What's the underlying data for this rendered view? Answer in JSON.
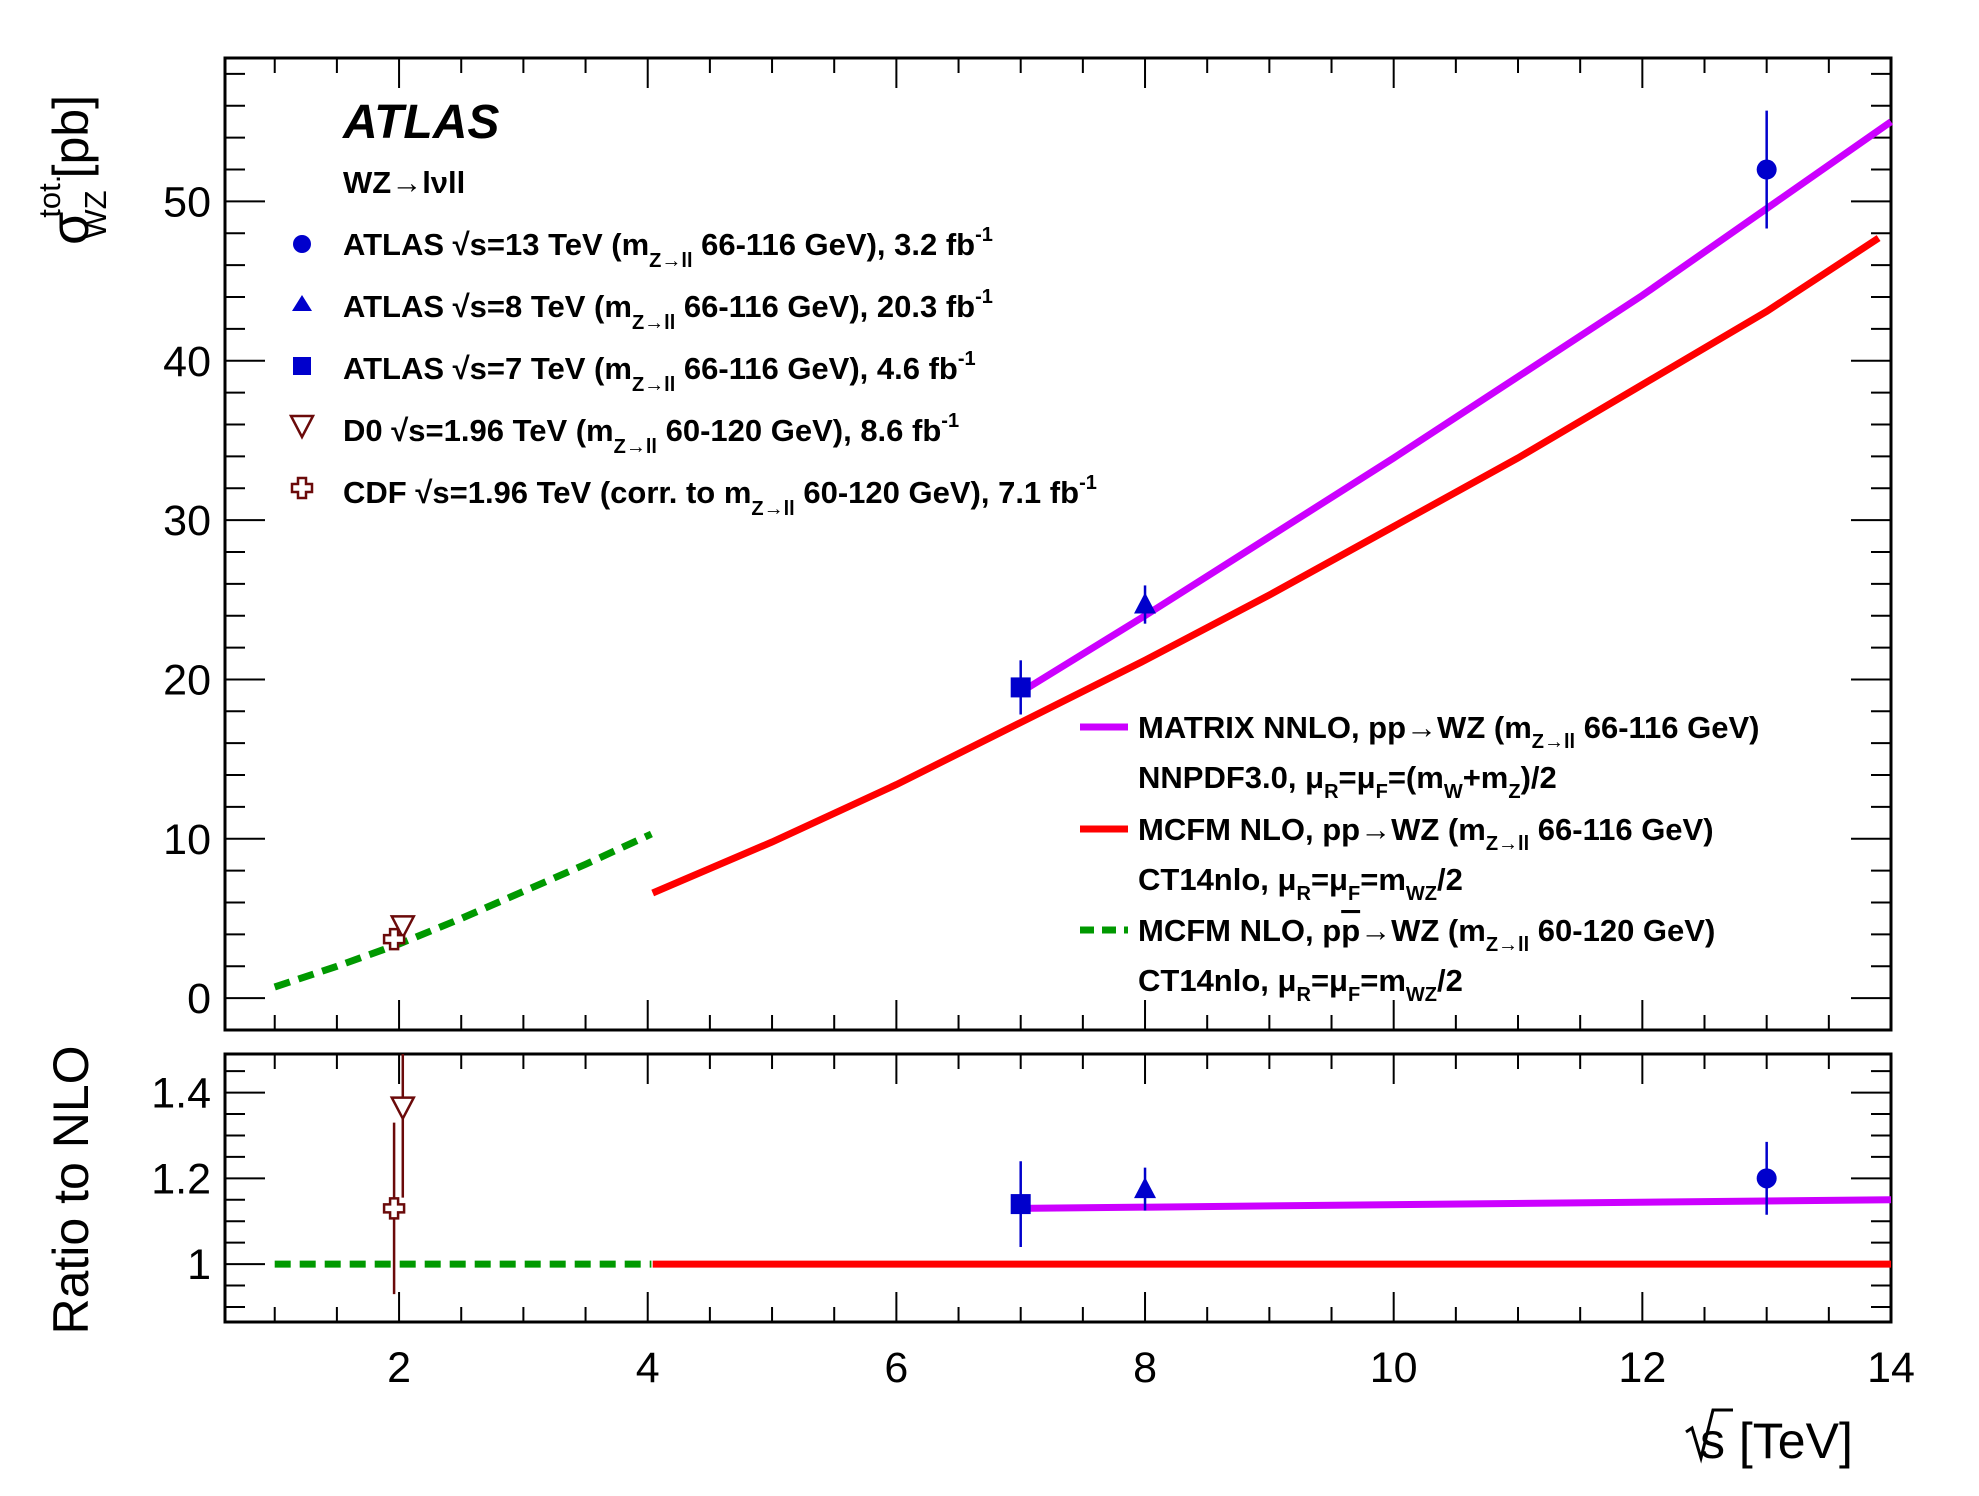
{
  "chart_data": {
    "type": "scatter",
    "brand": "ATLAS",
    "process": "WZ→lνll",
    "xlabel": "√s [TeV]",
    "top_panel": {
      "ylabel": "σ",
      "ylabel_sup": "tot.",
      "ylabel_sub": "WZ",
      "ylabel_unit": "[pb]",
      "xlim": [
        0.6,
        14
      ],
      "ylim": [
        -2,
        59
      ],
      "yticks": [
        "0",
        "10",
        "20",
        "30",
        "40",
        "50"
      ],
      "measurements": [
        {
          "name": "ATLAS √s=13 TeV",
          "x": 13,
          "y": 52.0,
          "err": 3.7,
          "marker": "circle",
          "color": "#0000cc"
        },
        {
          "name": "ATLAS √s=8 TeV",
          "x": 8,
          "y": 24.7,
          "err": 1.2,
          "marker": "triangle",
          "color": "#0000cc"
        },
        {
          "name": "ATLAS √s=7 TeV",
          "x": 7,
          "y": 19.5,
          "err": 1.7,
          "marker": "square",
          "color": "#0000cc"
        },
        {
          "name": "D0",
          "x": 2.03,
          "y": 4.5,
          "err": 0.6,
          "marker": "open-triangle-down",
          "color": "#6b0a0a"
        },
        {
          "name": "CDF",
          "x": 1.96,
          "y": 3.7,
          "err": 0.5,
          "marker": "open-cross",
          "color": "#6b0a0a"
        }
      ],
      "theory": [
        {
          "name": "MATRIX NNLO",
          "color": "#cc00ff",
          "style": "solid",
          "x": [
            7,
            8,
            10,
            12,
            14
          ],
          "y": [
            19.2,
            24.0,
            33.9,
            44.1,
            55.0
          ]
        },
        {
          "name": "MCFM NLO pp",
          "color": "#ff0000",
          "style": "solid",
          "x": [
            4.04,
            5,
            6,
            7,
            8,
            9,
            10,
            11,
            12,
            13,
            13.9
          ],
          "y": [
            6.6,
            9.8,
            13.4,
            17.3,
            21.2,
            25.3,
            29.6,
            33.9,
            38.5,
            43.1,
            47.7
          ]
        },
        {
          "name": "MCFM NLO ppbar",
          "color": "#009900",
          "style": "dashed",
          "x": [
            1.0,
            1.5,
            2.0,
            2.5,
            3.0,
            3.5,
            4.03
          ],
          "y": [
            0.7,
            2.0,
            3.4,
            5.0,
            6.7,
            8.4,
            10.3
          ]
        }
      ]
    },
    "bottom_panel": {
      "ylabel": "Ratio to NLO",
      "xlim": [
        0.6,
        14
      ],
      "ylim": [
        0.865,
        1.49
      ],
      "yticks": [
        "1",
        "1.2",
        "1.4"
      ],
      "xticks": [
        "2",
        "4",
        "6",
        "8",
        "10",
        "12",
        "14"
      ],
      "measurements": [
        {
          "name": "ATLAS √s=13 TeV",
          "x": 13,
          "y": 1.2,
          "err": 0.085
        },
        {
          "name": "ATLAS √s=8 TeV",
          "x": 8,
          "y": 1.175,
          "err": 0.05
        },
        {
          "name": "ATLAS √s=7 TeV",
          "x": 7,
          "y": 1.14,
          "err": 0.1
        },
        {
          "name": "D0",
          "x": 2.03,
          "y": 1.365,
          "err": 0.21
        },
        {
          "name": "CDF",
          "x": 1.96,
          "y": 1.13,
          "err": 0.2
        }
      ],
      "theory": [
        {
          "name": "MATRIX NNLO",
          "color": "#cc00ff",
          "x": [
            7,
            14
          ],
          "y": [
            1.13,
            1.15
          ]
        },
        {
          "name": "MCFM NLO pp",
          "color": "#ff0000",
          "x": [
            4.04,
            14
          ],
          "y": [
            1.0,
            1.0
          ]
        },
        {
          "name": "MCFM NLO ppbar",
          "color": "#009900",
          "x": [
            1.0,
            4.03
          ],
          "y": [
            1.0,
            1.0
          ]
        }
      ]
    },
    "legend_data": {
      "atlas13": {
        "exp": "ATLAS",
        "rs": "s=13 TeV (m",
        "sub": "Z→ll",
        "rest": " 66-116 GeV), 3.2 fb",
        "sup": "-1"
      },
      "atlas8": {
        "exp": "ATLAS",
        "rs": "s=8 TeV  (m",
        "sub": "Z→ll",
        "rest": " 66-116 GeV), 20.3 fb",
        "sup": "-1"
      },
      "atlas7": {
        "exp": "ATLAS",
        "rs": "s=7 TeV  (m",
        "sub": "Z→ll",
        "rest": " 66-116 GeV), 4.6 fb",
        "sup": "-1"
      },
      "d0": {
        "exp": "D0",
        "rs": "s=1.96 TeV (m",
        "sub": "Z→ll",
        "rest": " 60-120 GeV), 8.6 fb",
        "sup": "-1"
      },
      "cdf": {
        "exp": "CDF",
        "rs": "s=1.96 TeV (corr. to m",
        "sub": "Z→ll",
        "rest": " 60-120 GeV), 7.1 fb",
        "sup": "-1"
      }
    },
    "legend_theory": {
      "matrix_l1_a": "MATRIX NNLO, pp→WZ (m",
      "matrix_l1_sub": "Z→ll",
      "matrix_l1_b": " 66-116 GeV)",
      "matrix_l2_a": "NNPDF3.0, μ",
      "matrix_l2_sub1": "R",
      "matrix_l2_b": "=μ",
      "matrix_l2_sub2": "F",
      "matrix_l2_c": "=(m",
      "matrix_l2_sub3": "W",
      "matrix_l2_d": "+m",
      "matrix_l2_sub4": "Z",
      "matrix_l2_e": ")/2",
      "mcfm_l1_a": "MCFM NLO, pp→WZ (m",
      "mcfm_l1_sub": "Z→ll",
      "mcfm_l1_b": " 66-116 GeV)",
      "mcfm_l2_a": "CT14nlo, μ",
      "mcfm_l2_sub1": "R",
      "mcfm_l2_b": "=μ",
      "mcfm_l2_sub2": "F",
      "mcfm_l2_c": "=m",
      "mcfm_l2_sub3": "WZ",
      "mcfm_l2_d": "/2",
      "ppbar_l1_a": "MCFM NLO, p",
      "ppbar_l1_pbar": "p",
      "ppbar_l1_b": "→WZ (m",
      "ppbar_l1_sub": "Z→ll",
      "ppbar_l1_c": " 60-120 GeV)",
      "ppbar_l2_a": "CT14nlo, μ",
      "ppbar_l2_sub1": "R",
      "ppbar_l2_b": "=μ",
      "ppbar_l2_sub2": "F",
      "ppbar_l2_c": "=m",
      "ppbar_l2_sub3": "WZ",
      "ppbar_l2_d": "/2"
    }
  }
}
